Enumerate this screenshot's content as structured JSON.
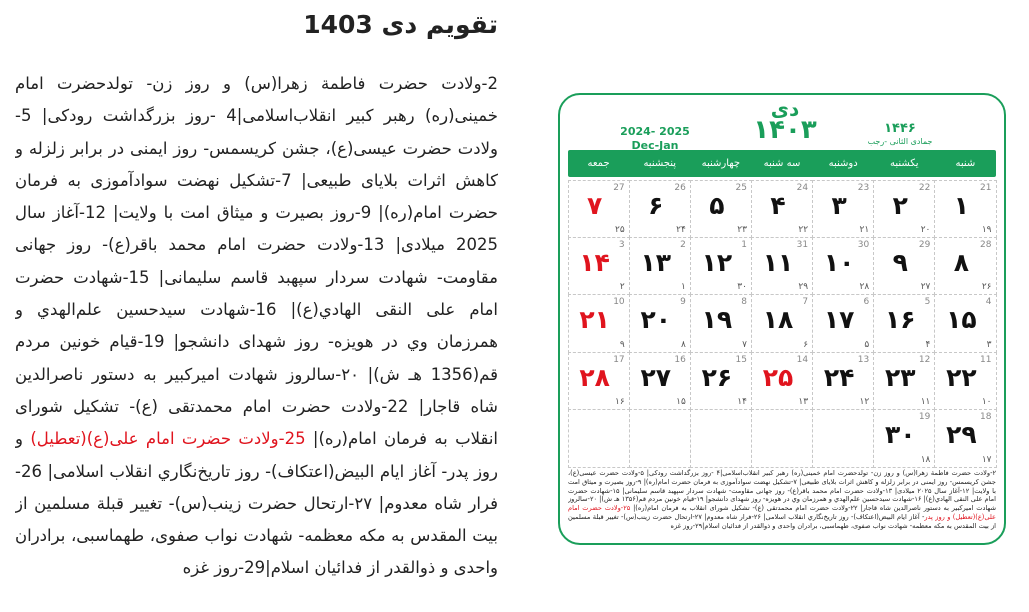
{
  "title": "تقویم دی 1403",
  "article": {
    "parts": [
      {
        "text": "2-ولادت حضرت فاطمة زهرا(س) و روز زن- تولدحضرت امام خمینی(ره) رهبر کبیر انقلاب‌اسلامی|4 -روز بزرگداشت رودکی| 5-ولادت حضرت عیسی(ع)، جشن کریسمس- روز ایمنی در برابر زلزله و کاهش اثرات بلایای طبیعی| 7-تشکیل نهضت سوادآموزی به فرمان حضرت امام(ره)| 9-روز بصیرت و میثاق امت با ولایت| 12-آغاز سال 2025 میلادی| 13-ولادت حضرت امام محمد باقر(ع)- روز جهانی مقاومت- شهادت سردار سپهبد قاسم سلیمانی| 15-شهادت حضرت امام على النقى الهادي(ع)| 16-شهادت سیدحسین علم‌الهدي و همرزمان وي در هویزه- روز شهدای دانشجو| 19-قیام خونین مردم قم(1356 هـ ش)| ۲۰-سالروز شهادت امیرکبیر به دستور ناصرالدین شاه قاجار| 22-ولادت حضرت امام محمدتقی (ع)- تشکیل شورای انقلاب به فرمان امام(ره)| "
      },
      {
        "text": "25-ولادت حضرت امام علی(ع)(تعطیل)",
        "color": "#e0141e"
      },
      {
        "text": " و روز پدر- آغاز ایام البیض(اعتکاف)- روز تاریخ‌نگاري انقلاب اسلامی| 26-فرار شاه معدوم| ۲۷-ارتحال حضرت زینب(س)- تغییر قبلة مسلمین از بیت المقدس به مکه معظمه- شهادت نواب صفوی، طهماسبی، برادران واحدی و ذوالقدر از فدائیان اسلام|29-روز غزه"
      }
    ]
  },
  "calendar": {
    "month": "دی",
    "year": "۱۴۰۳",
    "gregorian_years": "2024- 2025",
    "gregorian_months": "Dec-Jan",
    "hijri_year": "۱۴۴۶",
    "hijri_months": "جمادی الثانی -رجب",
    "holiday_color": "#e0141e",
    "weekdays": [
      "شنبه",
      "یکشنبه",
      "دوشنبه",
      "سه شنبه",
      "چهارشنبه",
      "پنجشنبه",
      "جمعه"
    ],
    "days": [
      {
        "day": "۱",
        "gregorian": 21,
        "hijri": "۱۹",
        "holiday": false
      },
      {
        "day": "۲",
        "gregorian": 22,
        "hijri": "۲۰",
        "holiday": false
      },
      {
        "day": "۳",
        "gregorian": 23,
        "hijri": "۲۱",
        "holiday": false
      },
      {
        "day": "۴",
        "gregorian": 24,
        "hijri": "۲۲",
        "holiday": false
      },
      {
        "day": "۵",
        "gregorian": 25,
        "hijri": "۲۳",
        "holiday": false
      },
      {
        "day": "۶",
        "gregorian": 26,
        "hijri": "۲۴",
        "holiday": false
      },
      {
        "day": "۷",
        "gregorian": 27,
        "hijri": "۲۵",
        "holiday": true
      },
      {
        "day": "۸",
        "gregorian": 28,
        "hijri": "۲۶",
        "holiday": false
      },
      {
        "day": "۹",
        "gregorian": 29,
        "hijri": "۲۷",
        "holiday": false
      },
      {
        "day": "۱۰",
        "gregorian": 30,
        "hijri": "۲۸",
        "holiday": false
      },
      {
        "day": "۱۱",
        "gregorian": 31,
        "hijri": "۲۹",
        "holiday": false
      },
      {
        "day": "۱۲",
        "gregorian": 1,
        "hijri": "۳۰",
        "holiday": false
      },
      {
        "day": "۱۳",
        "gregorian": 2,
        "hijri": "۱",
        "holiday": false
      },
      {
        "day": "۱۴",
        "gregorian": 3,
        "hijri": "۲",
        "holiday": true
      },
      {
        "day": "۱۵",
        "gregorian": 4,
        "hijri": "۳",
        "holiday": false
      },
      {
        "day": "۱۶",
        "gregorian": 5,
        "hijri": "۴",
        "holiday": false
      },
      {
        "day": "۱۷",
        "gregorian": 6,
        "hijri": "۵",
        "holiday": false
      },
      {
        "day": "۱۸",
        "gregorian": 7,
        "hijri": "۶",
        "holiday": false
      },
      {
        "day": "۱۹",
        "gregorian": 8,
        "hijri": "۷",
        "holiday": false
      },
      {
        "day": "۲۰",
        "gregorian": 9,
        "hijri": "۸",
        "holiday": false
      },
      {
        "day": "۲۱",
        "gregorian": 10,
        "hijri": "۹",
        "holiday": true
      },
      {
        "day": "۲۲",
        "gregorian": 11,
        "hijri": "۱۰",
        "holiday": false
      },
      {
        "day": "۲۳",
        "gregorian": 12,
        "hijri": "۱۱",
        "holiday": false
      },
      {
        "day": "۲۴",
        "gregorian": 13,
        "hijri": "۱۲",
        "holiday": false
      },
      {
        "day": "۲۵",
        "gregorian": 14,
        "hijri": "۱۳",
        "holiday": true
      },
      {
        "day": "۲۶",
        "gregorian": 15,
        "hijri": "۱۴",
        "holiday": false
      },
      {
        "day": "۲۷",
        "gregorian": 16,
        "hijri": "۱۵",
        "holiday": false
      },
      {
        "day": "۲۸",
        "gregorian": 17,
        "hijri": "۱۶",
        "holiday": true
      },
      {
        "day": "۲۹",
        "gregorian": 18,
        "hijri": "۱۷",
        "holiday": false
      },
      {
        "day": "۳۰",
        "gregorian": 19,
        "hijri": "۱۸",
        "holiday": false
      }
    ],
    "notes": {
      "parts": [
        {
          "text": "۲-ولادت حضرت فاطمة زهرا(س) و روز زن- تولدحضرت امام خمینی(ره) رهبر کبیر انقلاب‌اسلامی|۴ -روز بزرگداشت رودکی| ۵-ولادت حضرت عیسی(ع)، جشن کریسمس- روز ایمنی در برابر زلزله و کاهش اثرات بلایای طبیعی| ۷-تشکیل نهضت سوادآموزی به فرمان حضرت امام(ره)| ۹-روز بصیرت و میثاق امت با ولایت| ۱۲-آغاز سال ۲۰۲۵ میلادی| ۱۳-ولادت حضرت امام محمد باقر(ع)- روز جهانی مقاومت- شهادت سردار سپهبد قاسم سلیمانی| ۱۵-شهادت حضرت امام على النقى الهادي(ع)| ۱۶-شهادت سیدحسین علم‌الهدي و همرزمان وي در هویزه- روز شهدای دانشجو| ۱۹-قیام خونین مردم قم(۱۳۵۶ هـ ش)| ۲۰-سالروز شهادت امیرکبیر به دستور ناصرالدین شاه قاجار| ۲۲-ولادت حضرت امام محمدتقی (ع)- تشکیل شورای انقلاب به فرمان امام(ره)| "
        },
        {
          "text": "۲۵-ولادت حضرت امام علی(ع)(تعطیل) و روز پدر",
          "color": "#e0141e"
        },
        {
          "text": "- آغاز ایام البیض(اعتکاف)- روز تاریخ‌نگاري انقلاب اسلامی| ۲۶-فرار شاه معدوم| ۲۷-ارتحال حضرت زینب(س)- تغییر قبلة مسلمین از بیت المقدس به مکه معظمه- شهادت نواب صفوی، طهماسبی، برادران واحدی و ذوالقدر از فدائیان اسلام|۲۹-روز غزه"
        }
      ]
    }
  }
}
